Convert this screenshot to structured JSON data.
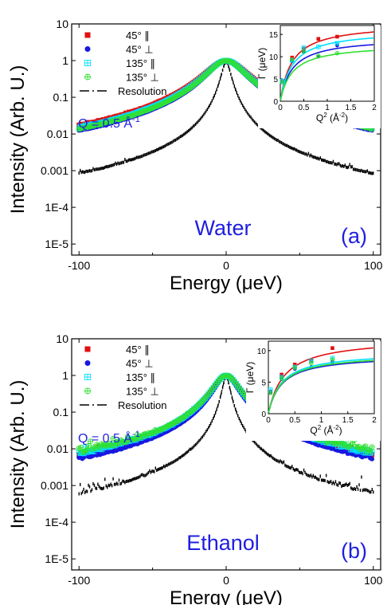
{
  "panels": [
    {
      "sample_label": "Water",
      "panel_label": "(a)",
      "q_label": "Q = 0.5 Å",
      "q_exponent": "-1",
      "colors": {
        "sample_text": "#1f1fe0",
        "q_text": "#1f1fe0"
      }
    },
    {
      "sample_label": "Ethanol",
      "panel_label": "(b)",
      "q_label": "Q = 0.5 Å",
      "q_exponent": "-1",
      "colors": {
        "sample_text": "#1f1fe0",
        "q_text": "#1f1fe0"
      }
    }
  ],
  "legend": [
    {
      "label": "45°  ∥",
      "color": "#e01010",
      "marker": "square"
    },
    {
      "label": "45°  ⊥",
      "color": "#1818e0",
      "marker": "circle"
    },
    {
      "label": "135°  ∥",
      "color": "#00e0ff",
      "marker": "square-cross"
    },
    {
      "label": "135°  ⊥",
      "color": "#30e030",
      "marker": "circle-cross"
    },
    {
      "label": "Resolution",
      "color": "#000000",
      "marker": "dashdot"
    }
  ],
  "chart_data": [
    {
      "type": "scatter",
      "title": "",
      "xlabel": "Energy (μeV)",
      "ylabel": "Intensity (Arb. U.)",
      "xlim": [
        -105,
        105
      ],
      "ylim": [
        5e-06,
        10
      ],
      "yscale": "log",
      "xticks": [
        -100,
        0,
        100
      ],
      "yticks": [
        10,
        1,
        0.1,
        0.01,
        0.001,
        0.0001,
        1e-05
      ],
      "ytick_labels": [
        "10",
        "1",
        "0.1",
        "0.01",
        "0.001",
        "1E-4",
        "1E-5"
      ],
      "legend_position": "top-left",
      "series": [
        {
          "name": "45° ∥",
          "peak": 1.0,
          "gamma": 13,
          "background": 0.0008
        },
        {
          "name": "45° ⊥",
          "peak": 1.0,
          "gamma": 11,
          "background": 0.0004
        },
        {
          "name": "135° ∥",
          "peak": 1.0,
          "gamma": 12,
          "background": 0.0007
        },
        {
          "name": "135° ⊥",
          "peak": 1.0,
          "gamma": 11.5,
          "background": 0.0006
        },
        {
          "name": "Resolution",
          "peak": 0.9,
          "gamma": 3,
          "background": 4e-05
        }
      ],
      "inset": {
        "type": "scatter",
        "xlabel": "Q",
        "xlabel_sup": "2",
        "xlabel_unit": " (Å",
        "xlabel_unit_sup": "-2",
        "xlabel_tail": ")",
        "ylabel": "Γ (μeV)",
        "xlim": [
          0,
          2
        ],
        "ylim": [
          0,
          17
        ],
        "xticks": [
          0,
          0.5,
          1,
          1.5,
          2
        ],
        "xtick_labels": [
          "0",
          "0.5",
          "1",
          "1.5",
          "2"
        ],
        "yticks": [
          0,
          5,
          10,
          15
        ],
        "ytick_labels": [
          "0",
          "5",
          "10",
          "15"
        ],
        "series": [
          {
            "name": "45° ∥",
            "x": [
              0.04,
              0.25,
              0.5,
              0.81,
              1.21
            ],
            "y": [
              4.6,
              9.8,
              11.8,
              14.0,
              14.5
            ],
            "fit_max": 17.5,
            "fit_k": 0.25
          },
          {
            "name": "45° ⊥",
            "x": [
              0.04,
              0.25,
              0.5,
              0.81,
              1.21
            ],
            "y": [
              4.4,
              9.0,
              11.0,
              10.0,
              12.5
            ],
            "fit_max": 14.3,
            "fit_k": 0.25
          },
          {
            "name": "135° ∥",
            "x": [
              0.04,
              0.25,
              0.5,
              0.81,
              1.21
            ],
            "y": [
              4.5,
              9.2,
              12.0,
              12.2,
              13.0
            ],
            "fit_max": 16.0,
            "fit_k": 0.25
          },
          {
            "name": "135° ⊥",
            "x": [
              0.04,
              0.25,
              0.5,
              0.81,
              1.21
            ],
            "y": [
              4.3,
              9.3,
              11.2,
              10.2,
              10.8
            ],
            "fit_max": 12.8,
            "fit_k": 0.25
          }
        ]
      }
    },
    {
      "type": "scatter",
      "title": "",
      "xlabel": "Energy (μeV)",
      "ylabel": "Intensity (Arb. U.)",
      "xlim": [
        -105,
        105
      ],
      "ylim": [
        5e-06,
        10
      ],
      "yscale": "log",
      "xticks": [
        -100,
        0,
        100
      ],
      "yticks": [
        10,
        1,
        0.1,
        0.01,
        0.001,
        0.0001,
        1e-05
      ],
      "ytick_labels": [
        "10",
        "1",
        "0.1",
        "0.01",
        "0.001",
        "1E-4",
        "1E-5"
      ],
      "legend_position": "top-left",
      "series": [
        {
          "name": "45° ∥",
          "peak": 1.0,
          "gamma": 8,
          "background": 0.001
        },
        {
          "name": "45° ⊥",
          "peak": 1.0,
          "gamma": 7,
          "background": 0.0007
        },
        {
          "name": "135° ∥",
          "peak": 1.0,
          "gamma": 8,
          "background": 0.0015
        },
        {
          "name": "135° ⊥",
          "peak": 1.0,
          "gamma": 8,
          "background": 0.003
        },
        {
          "name": "Resolution",
          "peak": 0.9,
          "gamma": 2.5,
          "background": 0.0001
        }
      ],
      "inset": {
        "type": "scatter",
        "xlabel": "Q",
        "xlabel_sup": "2",
        "xlabel_unit": " (Å",
        "xlabel_unit_sup": "-2",
        "xlabel_tail": ")",
        "ylabel": "Γ (μeV)",
        "xlim": [
          0,
          2
        ],
        "ylim": [
          0,
          11.5
        ],
        "xticks": [
          0,
          0.5,
          1,
          1.5,
          2
        ],
        "xtick_labels": [
          "0",
          "0.5",
          "1",
          "1.5",
          "2"
        ],
        "yticks": [
          0,
          5,
          10
        ],
        "ytick_labels": [
          "0",
          "5",
          "10"
        ],
        "series": [
          {
            "name": "45° ∥",
            "x": [
              0.04,
              0.25,
              0.5,
              0.81,
              1.21
            ],
            "y": [
              3.5,
              6.2,
              7.8,
              8.4,
              10.4
            ],
            "fit_max": 12.0,
            "fit_k": 0.3
          },
          {
            "name": "45° ⊥",
            "x": [
              0.04,
              0.25,
              0.5,
              0.81,
              1.21
            ],
            "y": [
              3.4,
              5.5,
              7.1,
              7.4,
              8.2
            ],
            "fit_max": 9.3,
            "fit_k": 0.25
          },
          {
            "name": "135° ∥",
            "x": [
              0.04,
              0.25,
              0.5,
              0.81,
              1.21
            ],
            "y": [
              3.8,
              5.8,
              7.4,
              8.4,
              8.8
            ],
            "fit_max": 9.8,
            "fit_k": 0.25
          },
          {
            "name": "135° ⊥",
            "x": [
              0.04,
              0.25,
              0.5,
              0.81,
              1.21
            ],
            "y": [
              3.3,
              5.6,
              7.3,
              8.0,
              8.6
            ],
            "fit_max": 9.5,
            "fit_k": 0.25
          }
        ]
      }
    }
  ]
}
